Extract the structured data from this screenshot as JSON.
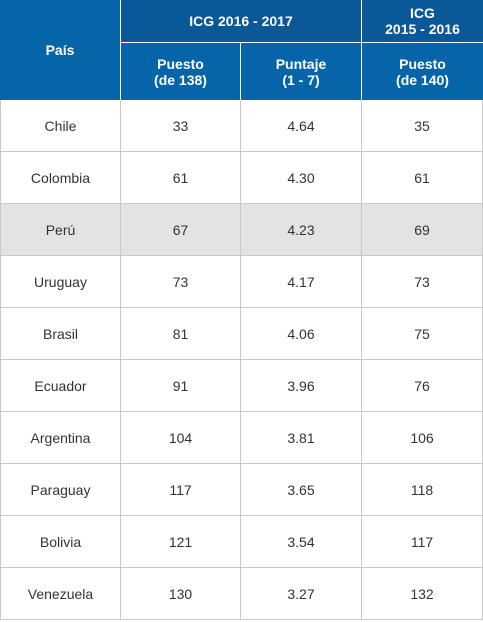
{
  "header": {
    "pais": "País",
    "icg_2016_2017": "ICG 2016 - 2017",
    "icg_2015_2016_line1": "ICG",
    "icg_2015_2016_line2": "2015 - 2016",
    "puesto_138_line1": "Puesto",
    "puesto_138_line2": "(de 138)",
    "puntaje_line1": "Puntaje",
    "puntaje_line2": "(1 - 7)",
    "puesto_140_line1": "Puesto",
    "puesto_140_line2": "(de 140)"
  },
  "colors": {
    "header_bg": "#0565a8",
    "highlight_row": "#e3e3e3"
  },
  "rows": [
    {
      "pais": "Chile",
      "puesto_2017": "33",
      "puntaje": "4.64",
      "puesto_2016": "35"
    },
    {
      "pais": "Colombia",
      "puesto_2017": "61",
      "puntaje": "4.30",
      "puesto_2016": "61"
    },
    {
      "pais": "Perú",
      "puesto_2017": "67",
      "puntaje": "4.23",
      "puesto_2016": "69",
      "highlight": true
    },
    {
      "pais": "Uruguay",
      "puesto_2017": "73",
      "puntaje": "4.17",
      "puesto_2016": "73"
    },
    {
      "pais": "Brasil",
      "puesto_2017": "81",
      "puntaje": "4.06",
      "puesto_2016": "75"
    },
    {
      "pais": "Ecuador",
      "puesto_2017": "91",
      "puntaje": "3.96",
      "puesto_2016": "76"
    },
    {
      "pais": "Argentina",
      "puesto_2017": "104",
      "puntaje": "3.81",
      "puesto_2016": "106"
    },
    {
      "pais": "Paraguay",
      "puesto_2017": "117",
      "puntaje": "3.65",
      "puesto_2016": "118"
    },
    {
      "pais": "Bolivia",
      "puesto_2017": "121",
      "puntaje": "3.54",
      "puesto_2016": "117"
    },
    {
      "pais": "Venezuela",
      "puesto_2017": "130",
      "puntaje": "3.27",
      "puesto_2016": "132"
    }
  ]
}
